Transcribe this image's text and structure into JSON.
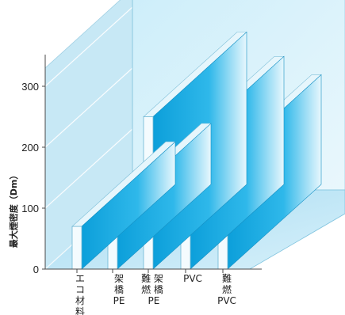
{
  "chart_data": {
    "type": "bar",
    "title": "",
    "ylabel": "最大煙密度（Dm）",
    "yticks": [
      "0",
      "100",
      "200",
      "300"
    ],
    "ylim": [
      0,
      300
    ],
    "categories": [
      {
        "lines": [
          "エ",
          "コ",
          "材",
          "料"
        ]
      },
      {
        "lines": [
          "架",
          "橋",
          "PE"
        ]
      },
      {
        "lines": [
          "難 架",
          "燃 橋",
          "  PE"
        ]
      },
      {
        "lines": [
          "PVC"
        ]
      },
      {
        "lines": [
          "難",
          "燃",
          "PVC"
        ]
      }
    ],
    "values": [
      70,
      100,
      250,
      210,
      180
    ],
    "colors": {
      "panel": "#dff3fb",
      "panel_dark": "#c7e8f5",
      "floor": "#bfe6f6",
      "bar_front": "#f4fbfe",
      "bar_side": "#1aa9e0"
    }
  }
}
